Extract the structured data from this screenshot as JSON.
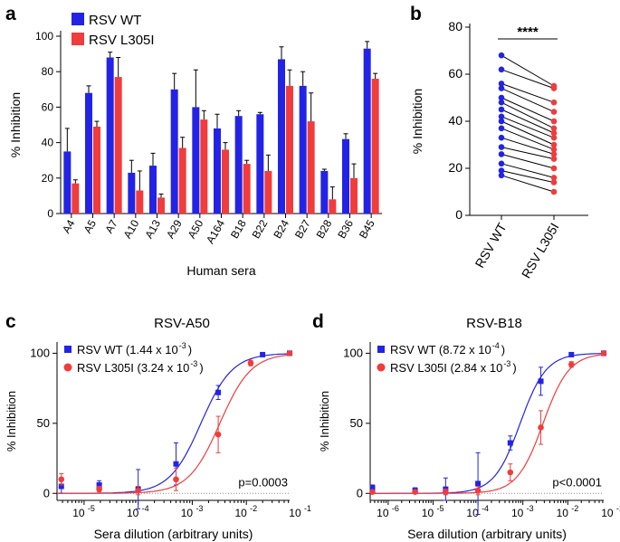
{
  "colors": {
    "wt": "#2323e6",
    "mut": "#f03c3c",
    "axis": "#000000",
    "dotted": "#888888"
  },
  "chart_data": [
    {
      "panel": "a",
      "type": "bar",
      "title": "",
      "xlabel": "Human sera",
      "ylabel": "% Inhibition",
      "ylim": [
        0,
        100
      ],
      "yticks": [
        "0",
        "20",
        "40",
        "60",
        "80",
        "100"
      ],
      "categories": [
        "A4",
        "A5",
        "A7",
        "A10",
        "A13",
        "A29",
        "A50",
        "A164",
        "B18",
        "B22",
        "B24",
        "B27",
        "B28",
        "B36",
        "B45"
      ],
      "series": [
        {
          "name": "RSV WT",
          "values": [
            35,
            68,
            88,
            23,
            27,
            70,
            60,
            48,
            55,
            56,
            87,
            72,
            24,
            42,
            93
          ],
          "errors": [
            13,
            4,
            3,
            7,
            7,
            9,
            21,
            8,
            3,
            1,
            7,
            8,
            1,
            3,
            4
          ]
        },
        {
          "name": "RSV L305I",
          "values": [
            17,
            49,
            77,
            13,
            9,
            37,
            53,
            36,
            28,
            24,
            72,
            52,
            8,
            20,
            76
          ],
          "errors": [
            2,
            3,
            11,
            11,
            2,
            6,
            5,
            4,
            2,
            9,
            9,
            16,
            7,
            8,
            3
          ]
        }
      ]
    },
    {
      "panel": "b",
      "type": "scatter",
      "title": "",
      "xlabel": "",
      "ylabel": "% Inhibition",
      "ylim": [
        0,
        80
      ],
      "yticks": [
        "0",
        "20",
        "40",
        "60",
        "80"
      ],
      "categories": [
        "RSV WT",
        "RSV L305I"
      ],
      "annotation": "****",
      "pairs": [
        [
          68,
          55
        ],
        [
          62,
          54
        ],
        [
          56,
          48
        ],
        [
          54,
          44
        ],
        [
          50,
          40
        ],
        [
          48,
          37
        ],
        [
          45,
          35
        ],
        [
          42,
          33
        ],
        [
          40,
          30
        ],
        [
          37,
          28
        ],
        [
          33,
          26
        ],
        [
          29,
          24
        ],
        [
          26,
          20
        ],
        [
          22,
          16
        ],
        [
          19,
          14
        ],
        [
          17,
          10
        ]
      ]
    },
    {
      "panel": "c",
      "type": "line",
      "title": "RSV-A50",
      "xlabel": "Sera dilution (arbitrary units)",
      "ylabel": "% Inhibition",
      "xlog_range": [
        -5.5,
        -1.2
      ],
      "xtick_exponents": [
        "-5",
        "-4",
        "-3",
        "-2",
        "-1"
      ],
      "ylim": [
        -5,
        108
      ],
      "yticks": [
        "0",
        "50",
        "100"
      ],
      "annotation": "p=0.0003",
      "series": [
        {
          "name": "RSV WT",
          "legend_value": "1.44 x 10",
          "legend_exp": "-3",
          "ic50_log": -2.84,
          "hill": 1.5,
          "points": [
            [
              -5.42,
              5,
              5
            ],
            [
              -4.72,
              6,
              3
            ],
            [
              -4.0,
              3,
              14
            ],
            [
              -3.3,
              21,
              15
            ],
            [
              -2.52,
              72,
              5
            ],
            [
              -1.7,
              99,
              1
            ],
            [
              -1.2,
              100,
              1
            ]
          ]
        },
        {
          "name": "RSV L305I",
          "legend_value": "3.24 x 10",
          "legend_exp": "-3",
          "ic50_log": -2.49,
          "hill": 1.5,
          "points": [
            [
              -5.42,
              10,
              4
            ],
            [
              -4.72,
              3,
              2
            ],
            [
              -4.0,
              2,
              3
            ],
            [
              -3.3,
              10,
              8
            ],
            [
              -2.52,
              42,
              13
            ],
            [
              -1.92,
              93,
              2
            ],
            [
              -1.2,
              100,
              1
            ]
          ]
        }
      ]
    },
    {
      "panel": "d",
      "type": "line",
      "title": "RSV-B18",
      "xlabel": "Sera dilution (arbitrary units)",
      "ylabel": "% Inhibition",
      "xlog_range": [
        -6.4,
        -1.2
      ],
      "xtick_exponents": [
        "-6",
        "-5",
        "-4",
        "-3",
        "-2",
        "-1"
      ],
      "ylim": [
        -5,
        108
      ],
      "yticks": [
        "0",
        "50",
        "100"
      ],
      "annotation": "p<0.0001",
      "series": [
        {
          "name": "RSV WT",
          "legend_value": "8.72 x 10",
          "legend_exp": "-4",
          "ic50_log": -3.06,
          "hill": 1.5,
          "points": [
            [
              -6.35,
              4,
              2
            ],
            [
              -5.4,
              2,
              2
            ],
            [
              -4.72,
              3,
              8
            ],
            [
              -4.0,
              7,
              22
            ],
            [
              -3.28,
              36,
              5
            ],
            [
              -2.6,
              80,
              10
            ],
            [
              -1.92,
              99,
              1
            ],
            [
              -1.2,
              100,
              1
            ]
          ]
        },
        {
          "name": "RSV L305I",
          "legend_value": "2.84 x 10",
          "legend_exp": "-3",
          "ic50_log": -2.55,
          "hill": 1.5,
          "points": [
            [
              -6.35,
              1,
              1
            ],
            [
              -5.4,
              1,
              1
            ],
            [
              -4.72,
              1,
              2
            ],
            [
              -4.0,
              2,
              3
            ],
            [
              -3.28,
              15,
              6
            ],
            [
              -2.6,
              47,
              12
            ],
            [
              -1.92,
              92,
              2
            ],
            [
              -1.2,
              100,
              1
            ]
          ]
        }
      ]
    }
  ]
}
